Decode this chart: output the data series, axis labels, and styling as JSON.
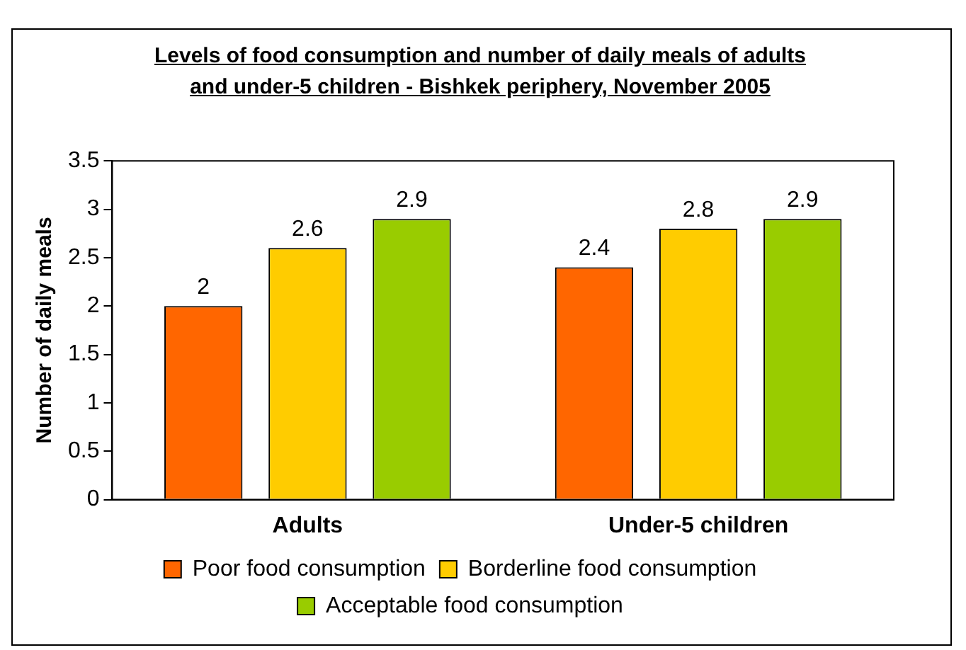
{
  "chart_data": {
    "type": "bar",
    "title": "Levels of food consumption and number of daily meals of adults and under-5 children - Bishkek periphery, November 2005",
    "ylabel": "Number of daily meals",
    "categories": [
      "Adults",
      "Under-5 children"
    ],
    "series": [
      {
        "name": "Poor food consumption",
        "color": "#ff6600",
        "values": [
          2,
          2.4
        ]
      },
      {
        "name": "Borderline food consumption",
        "color": "#ffcc00",
        "values": [
          2.6,
          2.8
        ]
      },
      {
        "name": "Acceptable food consumption",
        "color": "#99cc00",
        "values": [
          2.9,
          2.9
        ]
      }
    ],
    "ylim": [
      0,
      3.5
    ],
    "yticks": [
      0,
      0.5,
      1,
      1.5,
      2,
      2.5,
      3,
      3.5
    ],
    "grid": false,
    "legend": "bottom",
    "data_labels": true
  }
}
